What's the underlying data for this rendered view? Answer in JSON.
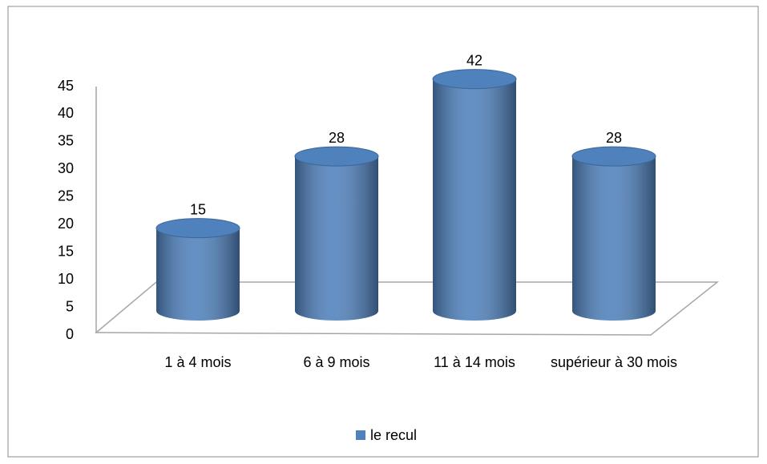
{
  "chart_data": {
    "type": "bar",
    "categories": [
      "1 à 4 mois",
      "6 à 9 mois",
      "11 à 14 mois",
      "supérieur à 30 mois"
    ],
    "series": [
      {
        "name": "le recul",
        "color": "#4f81bd",
        "values": [
          15,
          28,
          42,
          28
        ]
      }
    ],
    "ylim": [
      0,
      45
    ],
    "yticks": [
      0,
      5,
      10,
      15,
      20,
      25,
      30,
      35,
      40,
      45
    ],
    "legend": "bottom"
  }
}
